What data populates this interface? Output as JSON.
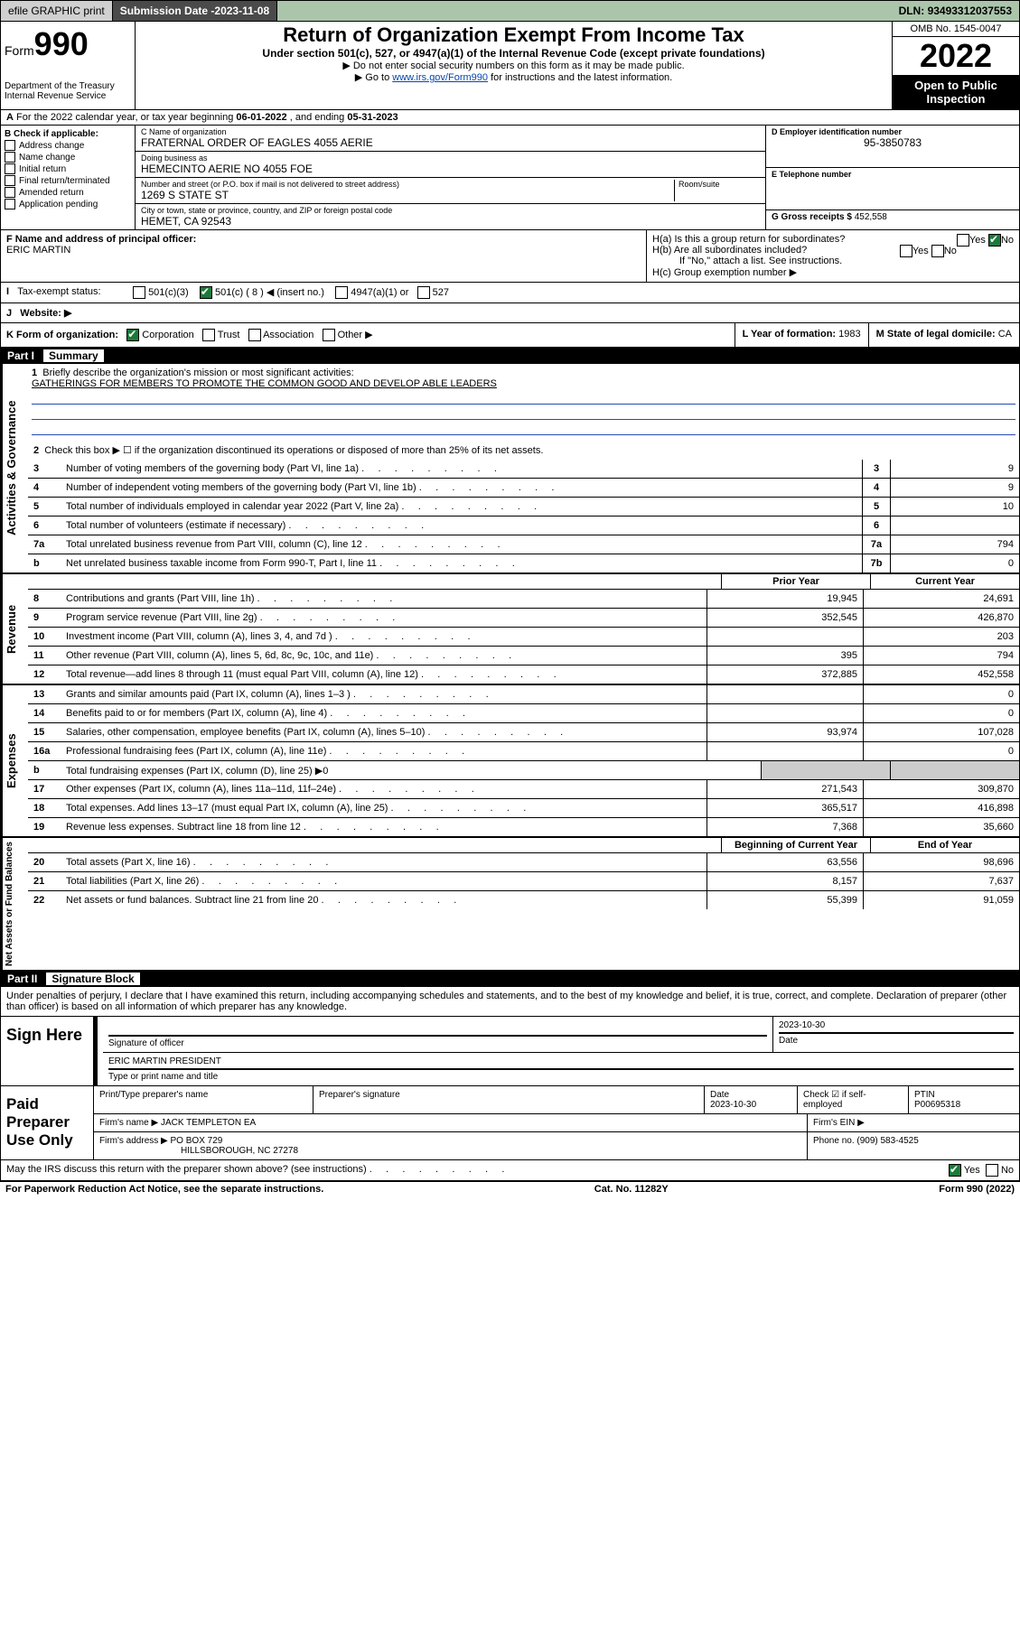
{
  "topbar": {
    "efile": "efile GRAPHIC print",
    "submission_label": "Submission Date - ",
    "submission_date": "2023-11-08",
    "dln_label": "DLN: ",
    "dln": "93493312037553"
  },
  "header": {
    "form_label": "Form",
    "form_num": "990",
    "dept": "Department of the Treasury",
    "irs": "Internal Revenue Service",
    "title": "Return of Organization Exempt From Income Tax",
    "subtitle": "Under section 501(c), 527, or 4947(a)(1) of the Internal Revenue Code (except private foundations)",
    "note1": "▶ Do not enter social security numbers on this form as it may be made public.",
    "note2_a": "▶ Go to ",
    "note2_link": "www.irs.gov/Form990",
    "note2_b": " for instructions and the latest information.",
    "omb": "OMB No. 1545-0047",
    "year": "2022",
    "open": "Open to Public Inspection"
  },
  "rowA": {
    "text_a": "For the 2022 calendar year, or tax year beginning ",
    "begin": "06-01-2022",
    "text_b": " , and ending ",
    "end": "05-31-2023"
  },
  "colB": {
    "hdr": "B Check if applicable:",
    "items": [
      "Address change",
      "Name change",
      "Initial return",
      "Final return/terminated",
      "Amended return",
      "Application pending"
    ]
  },
  "colC": {
    "name_lbl": "C Name of organization",
    "name": "FRATERNAL ORDER OF EAGLES 4055 AERIE",
    "dba_lbl": "Doing business as",
    "dba": "HEMECINTO AERIE NO 4055 FOE",
    "addr_lbl": "Number and street (or P.O. box if mail is not delivered to street address)",
    "room_lbl": "Room/suite",
    "addr": "1269 S STATE ST",
    "city_lbl": "City or town, state or province, country, and ZIP or foreign postal code",
    "city": "HEMET, CA  92543"
  },
  "colD": {
    "lbl": "D Employer identification number",
    "val": "95-3850783"
  },
  "colE": {
    "lbl": "E Telephone number",
    "val": ""
  },
  "colG": {
    "lbl": "G Gross receipts $ ",
    "val": "452,558"
  },
  "rowF": {
    "lbl": "F Name and address of principal officer:",
    "name": "ERIC MARTIN"
  },
  "rowH": {
    "ha": "H(a)  Is this a group return for subordinates?",
    "hb": "H(b)  Are all subordinates included?",
    "hb_note": "If \"No,\" attach a list. See instructions.",
    "hc": "H(c)  Group exemption number ▶",
    "yes": "Yes",
    "no": "No"
  },
  "rowI": {
    "lbl": "Tax-exempt status:",
    "opts": [
      "501(c)(3)",
      "501(c) ( 8 ) ◀ (insert no.)",
      "4947(a)(1) or",
      "527"
    ]
  },
  "rowJ": {
    "lbl": "Website: ▶"
  },
  "rowK": {
    "lbl": "K Form of organization:",
    "opts": [
      "Corporation",
      "Trust",
      "Association",
      "Other ▶"
    ],
    "l_lbl": "L Year of formation: ",
    "l_val": "1983",
    "m_lbl": "M State of legal domicile: ",
    "m_val": "CA"
  },
  "part1": {
    "label": "Part I",
    "title": "Summary"
  },
  "governance": {
    "vlabel": "Activities & Governance",
    "line1_label": "Briefly describe the organization's mission or most significant activities:",
    "mission": "GATHERINGS FOR MEMBERS TO PROMOTE THE COMMON GOOD AND DEVELOP ABLE LEADERS",
    "line2": "Check this box ▶ ☐  if the organization discontinued its operations or disposed of more than 25% of its net assets.",
    "rows": [
      {
        "n": "3",
        "d": "Number of voting members of the governing body (Part VI, line 1a)",
        "box": "3",
        "v": "9"
      },
      {
        "n": "4",
        "d": "Number of independent voting members of the governing body (Part VI, line 1b)",
        "box": "4",
        "v": "9"
      },
      {
        "n": "5",
        "d": "Total number of individuals employed in calendar year 2022 (Part V, line 2a)",
        "box": "5",
        "v": "10"
      },
      {
        "n": "6",
        "d": "Total number of volunteers (estimate if necessary)",
        "box": "6",
        "v": ""
      },
      {
        "n": "7a",
        "d": "Total unrelated business revenue from Part VIII, column (C), line 12",
        "box": "7a",
        "v": "794"
      },
      {
        "n": "b",
        "d": "Net unrelated business taxable income from Form 990-T, Part I, line 11",
        "box": "7b",
        "v": "0"
      }
    ]
  },
  "colhdrs": {
    "prior": "Prior Year",
    "current": "Current Year",
    "boy": "Beginning of Current Year",
    "eoy": "End of Year"
  },
  "revenue": {
    "vlabel": "Revenue",
    "rows": [
      {
        "n": "8",
        "d": "Contributions and grants (Part VIII, line 1h)",
        "p": "19,945",
        "c": "24,691"
      },
      {
        "n": "9",
        "d": "Program service revenue (Part VIII, line 2g)",
        "p": "352,545",
        "c": "426,870"
      },
      {
        "n": "10",
        "d": "Investment income (Part VIII, column (A), lines 3, 4, and 7d )",
        "p": "",
        "c": "203"
      },
      {
        "n": "11",
        "d": "Other revenue (Part VIII, column (A), lines 5, 6d, 8c, 9c, 10c, and 11e)",
        "p": "395",
        "c": "794"
      },
      {
        "n": "12",
        "d": "Total revenue—add lines 8 through 11 (must equal Part VIII, column (A), line 12)",
        "p": "372,885",
        "c": "452,558"
      }
    ]
  },
  "expenses": {
    "vlabel": "Expenses",
    "rows": [
      {
        "n": "13",
        "d": "Grants and similar amounts paid (Part IX, column (A), lines 1–3 )",
        "p": "",
        "c": "0"
      },
      {
        "n": "14",
        "d": "Benefits paid to or for members (Part IX, column (A), line 4)",
        "p": "",
        "c": "0"
      },
      {
        "n": "15",
        "d": "Salaries, other compensation, employee benefits (Part IX, column (A), lines 5–10)",
        "p": "93,974",
        "c": "107,028"
      },
      {
        "n": "16a",
        "d": "Professional fundraising fees (Part IX, column (A), line 11e)",
        "p": "",
        "c": "0"
      },
      {
        "n": "b",
        "d": "Total fundraising expenses (Part IX, column (D), line 25) ▶0",
        "p": null,
        "c": null
      },
      {
        "n": "17",
        "d": "Other expenses (Part IX, column (A), lines 11a–11d, 11f–24e)",
        "p": "271,543",
        "c": "309,870"
      },
      {
        "n": "18",
        "d": "Total expenses. Add lines 13–17 (must equal Part IX, column (A), line 25)",
        "p": "365,517",
        "c": "416,898"
      },
      {
        "n": "19",
        "d": "Revenue less expenses. Subtract line 18 from line 12",
        "p": "7,368",
        "c": "35,660"
      }
    ]
  },
  "netassets": {
    "vlabel": "Net Assets or Fund Balances",
    "rows": [
      {
        "n": "20",
        "d": "Total assets (Part X, line 16)",
        "p": "63,556",
        "c": "98,696"
      },
      {
        "n": "21",
        "d": "Total liabilities (Part X, line 26)",
        "p": "8,157",
        "c": "7,637"
      },
      {
        "n": "22",
        "d": "Net assets or fund balances. Subtract line 21 from line 20",
        "p": "55,399",
        "c": "91,059"
      }
    ]
  },
  "part2": {
    "label": "Part II",
    "title": "Signature Block"
  },
  "sig": {
    "declaration": "Under penalties of perjury, I declare that I have examined this return, including accompanying schedules and statements, and to the best of my knowledge and belief, it is true, correct, and complete. Declaration of preparer (other than officer) is based on all information of which preparer has any knowledge.",
    "sign_here": "Sign Here",
    "sig_officer": "Signature of officer",
    "date": "Date",
    "sig_date": "2023-10-30",
    "officer_name": "ERIC MARTIN  PRESIDENT",
    "type_name": "Type or print name and title",
    "paid": "Paid Preparer Use Only",
    "prep_name_lbl": "Print/Type preparer's name",
    "prep_sig_lbl": "Preparer's signature",
    "prep_date_lbl": "Date",
    "prep_date": "2023-10-30",
    "check_self": "Check ☑ if self-employed",
    "ptin_lbl": "PTIN",
    "ptin": "P00695318",
    "firm_name_lbl": "Firm's name   ▶ ",
    "firm_name": "JACK TEMPLETON EA",
    "firm_ein_lbl": "Firm's EIN ▶",
    "firm_addr_lbl": "Firm's address ▶ ",
    "firm_addr1": "PO BOX 729",
    "firm_addr2": "HILLSBOROUGH, NC  27278",
    "phone_lbl": "Phone no. ",
    "phone": "(909) 583-4525",
    "discuss": "May the IRS discuss this return with the preparer shown above? (see instructions)",
    "yes": "Yes",
    "no": "No"
  },
  "footer": {
    "left": "For Paperwork Reduction Act Notice, see the separate instructions.",
    "mid": "Cat. No. 11282Y",
    "right": "Form 990 (2022)"
  }
}
